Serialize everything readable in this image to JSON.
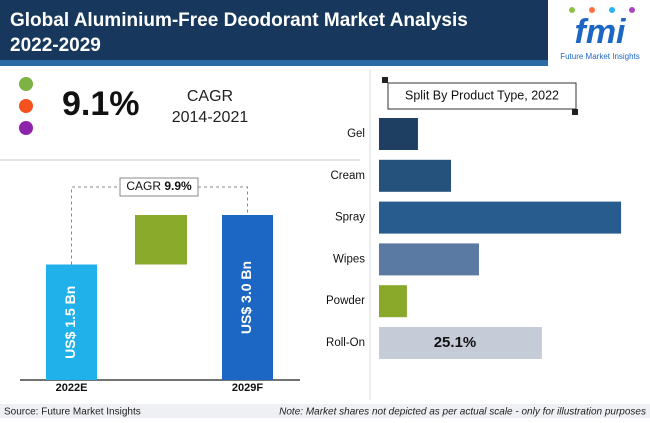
{
  "header": {
    "title_line1": "Global Aluminium-Free Deodorant Market Analysis",
    "title_line2": "2022-2029",
    "logo": "fmi",
    "logo_caption": "Future Market Insights"
  },
  "cagr_block": {
    "value": "9.1%",
    "label": "CAGR",
    "period": "2014-2021"
  },
  "chart_data": [
    {
      "type": "bar",
      "orientation": "vertical",
      "categories": [
        "2022E",
        "2029F"
      ],
      "values": [
        1.5,
        3.0
      ],
      "value_labels": [
        "US$ 1.5 Bn",
        "US$ 3.0 Bn"
      ],
      "colors": [
        "#20b1ea",
        "#1c67c4"
      ],
      "increment_color": "#8aaa2c",
      "ylim": [
        -2,
        3.5
      ],
      "annotation_label": "CAGR",
      "annotation_value": "9.9%"
    },
    {
      "type": "bar",
      "orientation": "horizontal",
      "legend_title": "Split By Product Type, 2022",
      "categories": [
        "Gel",
        "Cream",
        "Spray",
        "Wipes",
        "Powder",
        "Roll-On"
      ],
      "values": [
        6.0,
        11.1,
        37.3,
        15.4,
        4.3,
        25.1
      ],
      "value_labels": [
        null,
        null,
        null,
        null,
        null,
        "25.1%"
      ],
      "colors": [
        "#1e3f62",
        "#24527c",
        "#295c8e",
        "#5a7aa3",
        "#8aa82a",
        "#c6ccd7"
      ],
      "xlim": [
        0,
        40
      ]
    }
  ],
  "footer": {
    "source": "Source: Future Market Insights",
    "note": "Note: Market shares not depicted as per actual scale - only for illustration purposes"
  }
}
